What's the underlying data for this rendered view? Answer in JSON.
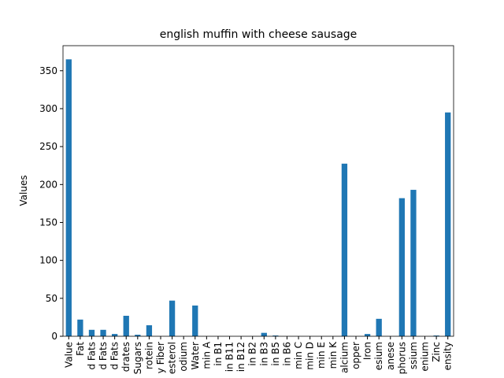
{
  "chart_data": {
    "type": "bar",
    "title": "english muffin with cheese sausage",
    "ylabel": "Values",
    "categories": [
      "Value",
      "Fat",
      "d Fats",
      "d Fats",
      "d Fats",
      "drates",
      "Sugars",
      "rotein",
      "y Fiber",
      "esterol",
      "odium",
      "Water",
      "min A",
      "in B1",
      "in B11",
      "in B12",
      "in B2",
      "in B3",
      "in B5",
      "in B6",
      "min C",
      "min D",
      "min E",
      "min K",
      "alcium",
      "opper",
      "Iron",
      "esium",
      "anese",
      "phorus",
      "ssium",
      "enium",
      "Zinc",
      "ensity"
    ],
    "values": [
      365,
      22,
      8.5,
      8.5,
      3,
      27,
      2,
      14.5,
      0,
      47,
      0,
      40.5,
      0,
      0,
      0,
      0,
      0,
      4.5,
      1,
      0,
      0,
      0,
      0,
      0,
      227.5,
      0,
      3,
      23,
      0,
      182,
      193,
      0,
      1,
      295
    ],
    "color": "#1f77b4",
    "ylim": [
      0,
      383
    ],
    "yticks": [
      0,
      50,
      100,
      150,
      200,
      250,
      300,
      350
    ]
  }
}
